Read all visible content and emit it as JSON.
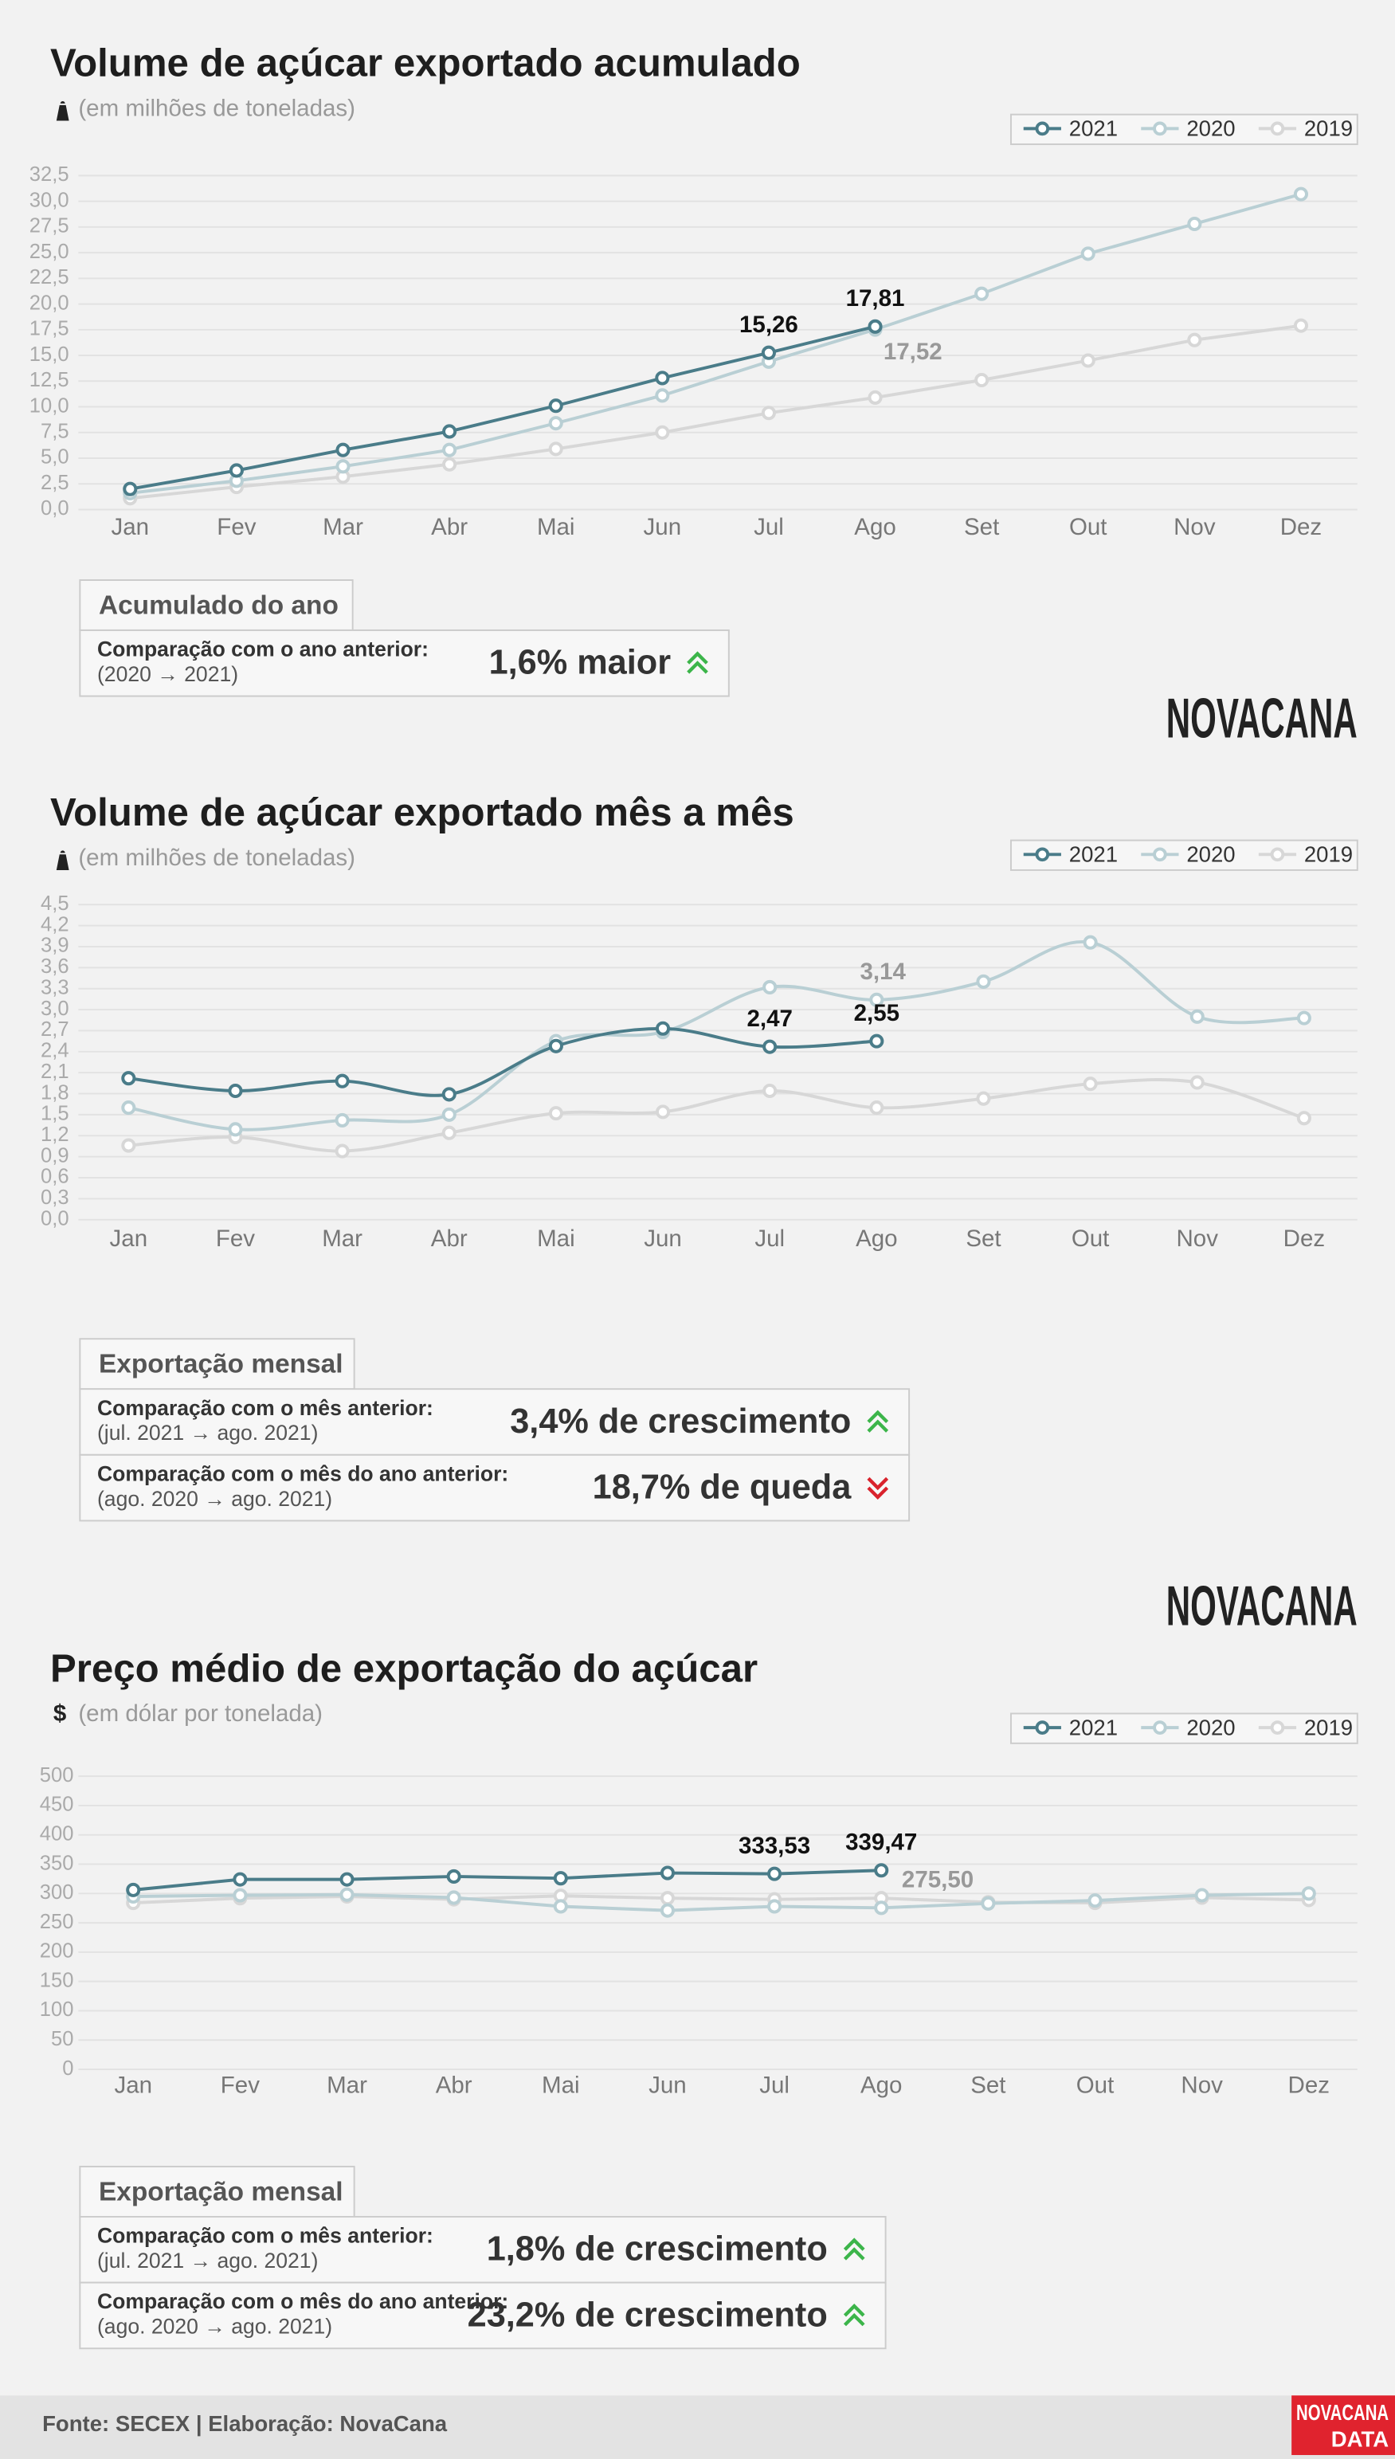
{
  "chart_data": [
    {
      "type": "line",
      "title": "Volume de açúcar exportado acumulado",
      "subtitle": "(em milhões de toneladas)",
      "categories": [
        "Jan",
        "Fev",
        "Mar",
        "Abr",
        "Mai",
        "Jun",
        "Jul",
        "Ago",
        "Set",
        "Out",
        "Nov",
        "Dez"
      ],
      "series": [
        {
          "name": "2021",
          "color": "#4a7c89",
          "values": [
            2.0,
            3.8,
            5.8,
            7.6,
            10.1,
            12.8,
            15.26,
            17.81,
            null,
            null,
            null,
            null
          ],
          "value_labels": [
            null,
            null,
            null,
            null,
            null,
            null,
            "15,26",
            "17,81",
            null,
            null,
            null,
            null
          ]
        },
        {
          "name": "2020",
          "color": "#b9cfd4",
          "values": [
            1.6,
            2.8,
            4.2,
            5.8,
            8.4,
            11.1,
            14.4,
            17.52,
            21.0,
            24.9,
            27.8,
            30.7
          ],
          "value_labels": [
            null,
            null,
            null,
            null,
            null,
            null,
            null,
            "17,52",
            null,
            null,
            null,
            null
          ]
        },
        {
          "name": "2019",
          "color": "#d7d7d7",
          "values": [
            1.1,
            2.2,
            3.2,
            4.4,
            5.9,
            7.5,
            9.4,
            10.9,
            12.6,
            14.5,
            16.5,
            17.9
          ]
        }
      ],
      "ylim": [
        0,
        32.5
      ],
      "yticks": [
        {
          "value": 0,
          "label": "0,0"
        },
        {
          "value": 2.5,
          "label": "2,5"
        },
        {
          "value": 5,
          "label": "5,0"
        },
        {
          "value": 7.5,
          "label": "7,5"
        },
        {
          "value": 10,
          "label": "10,0"
        },
        {
          "value": 12.5,
          "label": "12,5"
        },
        {
          "value": 15,
          "label": "15,0"
        },
        {
          "value": 17.5,
          "label": "17,5"
        },
        {
          "value": 20,
          "label": "20,0"
        },
        {
          "value": 22.5,
          "label": "22,5"
        },
        {
          "value": 25,
          "label": "25,0"
        },
        {
          "value": 27.5,
          "label": "27,5"
        },
        {
          "value": 30,
          "label": "30,0"
        },
        {
          "value": 32.5,
          "label": "32,5"
        }
      ],
      "grid": true,
      "legend": "top-right"
    },
    {
      "type": "line",
      "title": "Volume de açúcar exportado mês a mês",
      "subtitle": "(em milhões de toneladas)",
      "smooth": true,
      "categories": [
        "Jan",
        "Fev",
        "Mar",
        "Abr",
        "Mai",
        "Jun",
        "Jul",
        "Ago",
        "Set",
        "Out",
        "Nov",
        "Dez"
      ],
      "series": [
        {
          "name": "2021",
          "color": "#4a7c89",
          "values": [
            2.02,
            1.84,
            1.98,
            1.79,
            2.48,
            2.73,
            2.47,
            2.55,
            null,
            null,
            null,
            null
          ],
          "value_labels": [
            null,
            null,
            null,
            null,
            null,
            null,
            "2,47",
            "2,55",
            null,
            null,
            null,
            null
          ]
        },
        {
          "name": "2020",
          "color": "#b9cfd4",
          "values": [
            1.6,
            1.29,
            1.42,
            1.5,
            2.55,
            2.68,
            3.32,
            3.14,
            3.4,
            3.96,
            2.9,
            2.88
          ],
          "value_labels": [
            null,
            null,
            null,
            null,
            null,
            null,
            null,
            "3,14",
            null,
            null,
            null,
            null
          ]
        },
        {
          "name": "2019",
          "color": "#d7d7d7",
          "values": [
            1.06,
            1.18,
            0.98,
            1.24,
            1.52,
            1.54,
            1.84,
            1.6,
            1.73,
            1.94,
            1.96,
            1.45
          ]
        }
      ],
      "ylim": [
        0,
        4.5
      ],
      "yticks": [
        {
          "value": 0,
          "label": "0,0"
        },
        {
          "value": 0.3,
          "label": "0,3"
        },
        {
          "value": 0.6,
          "label": "0,6"
        },
        {
          "value": 0.9,
          "label": "0,9"
        },
        {
          "value": 1.2,
          "label": "1,2"
        },
        {
          "value": 1.5,
          "label": "1,5"
        },
        {
          "value": 1.8,
          "label": "1,8"
        },
        {
          "value": 2.1,
          "label": "2,1"
        },
        {
          "value": 2.4,
          "label": "2,4"
        },
        {
          "value": 2.7,
          "label": "2,7"
        },
        {
          "value": 3.0,
          "label": "3,0"
        },
        {
          "value": 3.3,
          "label": "3,3"
        },
        {
          "value": 3.6,
          "label": "3,6"
        },
        {
          "value": 3.9,
          "label": "3,9"
        },
        {
          "value": 4.2,
          "label": "4,2"
        },
        {
          "value": 4.5,
          "label": "4,5"
        }
      ],
      "grid": true,
      "legend": "top-right"
    },
    {
      "type": "line",
      "title": "Preço médio de exportação do açúcar",
      "subtitle": "(em dólar por tonelada)",
      "unit_symbol": "$",
      "categories": [
        "Jan",
        "Fev",
        "Mar",
        "Abr",
        "Mai",
        "Jun",
        "Jul",
        "Ago",
        "Set",
        "Out",
        "Nov",
        "Dez"
      ],
      "series": [
        {
          "name": "2021",
          "color": "#4a7c89",
          "values": [
            306,
            324,
            324,
            329,
            326,
            335,
            333.53,
            339.47,
            null,
            null,
            null,
            null
          ],
          "value_labels": [
            null,
            null,
            null,
            null,
            null,
            null,
            "333,53",
            "339,47",
            null,
            null,
            null,
            null
          ]
        },
        {
          "name": "2020",
          "color": "#b9cfd4",
          "values": [
            295,
            297,
            298,
            293,
            278,
            271,
            278,
            275.5,
            283,
            288,
            297,
            300
          ],
          "value_labels": [
            null,
            null,
            null,
            null,
            null,
            null,
            null,
            "275,50",
            null,
            null,
            null,
            null
          ]
        },
        {
          "name": "2019",
          "color": "#d7d7d7",
          "values": [
            284,
            292,
            295,
            290,
            296,
            292,
            290,
            292,
            285,
            284,
            293,
            289
          ]
        }
      ],
      "ylim": [
        0,
        500
      ],
      "yticks": [
        0,
        50,
        100,
        150,
        200,
        250,
        300,
        350,
        400,
        450,
        500
      ],
      "grid": true,
      "legend": "top-right"
    }
  ],
  "summaries": [
    {
      "title": "Acumulado do ano",
      "rows": [
        {
          "label": "Comparação com o ano anterior:",
          "period": "(2020 → 2021)",
          "value": "1,6% maior",
          "direction": "up"
        }
      ]
    },
    {
      "title": "Exportação mensal",
      "rows": [
        {
          "label": "Comparação com o mês anterior:",
          "period": "(jul. 2021 → ago. 2021)",
          "value": "3,4% de crescimento",
          "direction": "up"
        },
        {
          "label": "Comparação com o mês do ano anterior:",
          "period": "(ago. 2020 → ago. 2021)",
          "value": "18,7% de queda",
          "direction": "down"
        }
      ]
    },
    {
      "title": "Exportação mensal",
      "rows": [
        {
          "label": "Comparação com o mês anterior:",
          "period": "(jul. 2021 → ago. 2021)",
          "value": "1,8% de crescimento",
          "direction": "up"
        },
        {
          "label": "Comparação com o mês do ano anterior:",
          "period": "(ago. 2020 → ago. 2021)",
          "value": "23,2% de crescimento",
          "direction": "up"
        }
      ]
    }
  ],
  "logo": "NOVACANA",
  "footer": {
    "source": "Fonte: SECEX | Elaboração: NovaCana",
    "logo_top": "NOVACANA",
    "logo_bottom": "DATA"
  }
}
